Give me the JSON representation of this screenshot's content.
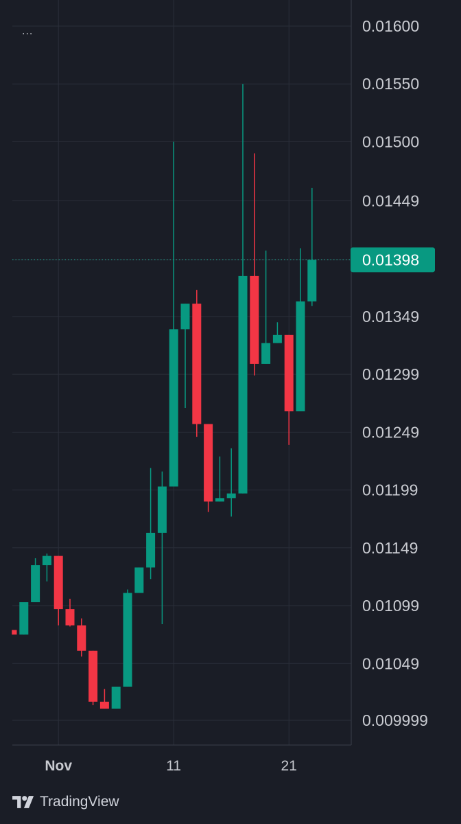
{
  "app": {
    "menu_label": "...",
    "brand_name": "TradingView"
  },
  "colors": {
    "background": "#1a1d26",
    "grid": "#2b2f3a",
    "up": "#089981",
    "down": "#f23645",
    "axis_text": "#c9cbd1",
    "price_line": "#22ab94"
  },
  "chart_data": {
    "type": "candlestick",
    "title": "",
    "xlabel": "",
    "ylabel": "",
    "ylim": [
      0.009999,
      0.016
    ],
    "y_ticks": [
      "0.01600",
      "0.01550",
      "0.01500",
      "0.01449",
      "0.01398",
      "0.01349",
      "0.01299",
      "0.01249",
      "0.01199",
      "0.01149",
      "0.01099",
      "0.01049",
      "0.009999"
    ],
    "x_ticks": [
      {
        "label": "Nov",
        "index": 4
      },
      {
        "label": "11",
        "index": 14
      },
      {
        "label": "21",
        "index": 24
      }
    ],
    "last_price": "0.01398",
    "candles": [
      {
        "o": 0.01078,
        "h": 0.01078,
        "l": 0.01074,
        "c": 0.01074
      },
      {
        "o": 0.01074,
        "h": 0.01102,
        "l": 0.01074,
        "c": 0.01102
      },
      {
        "o": 0.01102,
        "h": 0.0114,
        "l": 0.01102,
        "c": 0.01134
      },
      {
        "o": 0.01134,
        "h": 0.01144,
        "l": 0.0112,
        "c": 0.01142
      },
      {
        "o": 0.01142,
        "h": 0.01142,
        "l": 0.01082,
        "c": 0.01096
      },
      {
        "o": 0.01096,
        "h": 0.01105,
        "l": 0.01081,
        "c": 0.01082
      },
      {
        "o": 0.01082,
        "h": 0.01088,
        "l": 0.01055,
        "c": 0.0106
      },
      {
        "o": 0.0106,
        "h": 0.0106,
        "l": 0.01013,
        "c": 0.01016
      },
      {
        "o": 0.01016,
        "h": 0.01027,
        "l": 0.0101,
        "c": 0.0101
      },
      {
        "o": 0.0101,
        "h": 0.01029,
        "l": 0.0101,
        "c": 0.01029
      },
      {
        "o": 0.01029,
        "h": 0.01113,
        "l": 0.01029,
        "c": 0.0111
      },
      {
        "o": 0.0111,
        "h": 0.01132,
        "l": 0.0111,
        "c": 0.01132
      },
      {
        "o": 0.01132,
        "h": 0.01218,
        "l": 0.01122,
        "c": 0.01162
      },
      {
        "o": 0.01162,
        "h": 0.01215,
        "l": 0.01083,
        "c": 0.01202
      },
      {
        "o": 0.01202,
        "h": 0.015,
        "l": 0.01202,
        "c": 0.01338
      },
      {
        "o": 0.01338,
        "h": 0.0136,
        "l": 0.0127,
        "c": 0.0136
      },
      {
        "o": 0.0136,
        "h": 0.01372,
        "l": 0.01245,
        "c": 0.01256
      },
      {
        "o": 0.01256,
        "h": 0.01256,
        "l": 0.0118,
        "c": 0.01189
      },
      {
        "o": 0.01189,
        "h": 0.01228,
        "l": 0.01189,
        "c": 0.01192
      },
      {
        "o": 0.01192,
        "h": 0.01235,
        "l": 0.01176,
        "c": 0.01196
      },
      {
        "o": 0.01196,
        "h": 0.0155,
        "l": 0.01196,
        "c": 0.01384
      },
      {
        "o": 0.01384,
        "h": 0.0149,
        "l": 0.01298,
        "c": 0.01308
      },
      {
        "o": 0.01308,
        "h": 0.01406,
        "l": 0.01308,
        "c": 0.01326
      },
      {
        "o": 0.01326,
        "h": 0.01344,
        "l": 0.01326,
        "c": 0.01333
      },
      {
        "o": 0.01333,
        "h": 0.01333,
        "l": 0.01238,
        "c": 0.01267
      },
      {
        "o": 0.01267,
        "h": 0.01408,
        "l": 0.01267,
        "c": 0.01362
      },
      {
        "o": 0.01362,
        "h": 0.0146,
        "l": 0.01358,
        "c": 0.01398
      }
    ]
  }
}
